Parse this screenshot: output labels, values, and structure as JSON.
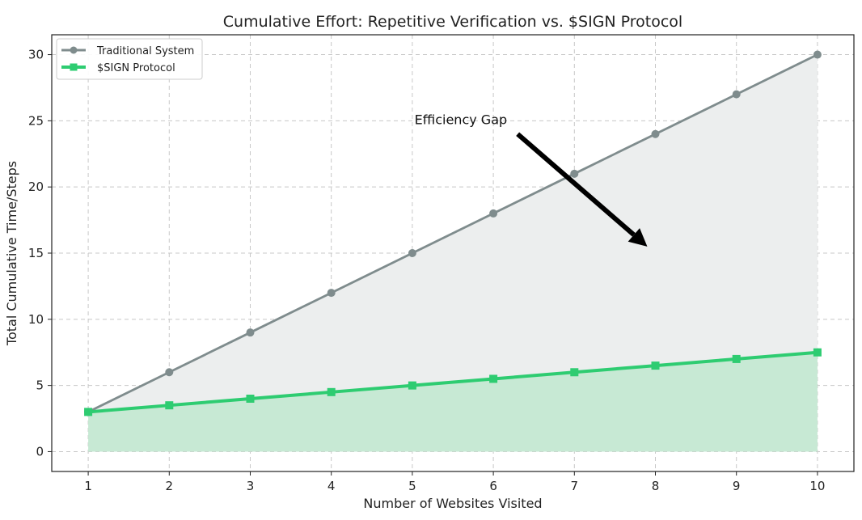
{
  "chart_data": {
    "type": "line",
    "title": "Cumulative Effort: Repetitive Verification vs. $SIGN Protocol",
    "xlabel": "Number of Websites Visited",
    "ylabel": "Total Cumulative Time/Steps",
    "x": [
      1,
      2,
      3,
      4,
      5,
      6,
      7,
      8,
      9,
      10
    ],
    "xlim": [
      0.55,
      10.45
    ],
    "ylim": [
      -1.5,
      31.5
    ],
    "xticks": [
      1,
      2,
      3,
      4,
      5,
      6,
      7,
      8,
      9,
      10
    ],
    "yticks": [
      0,
      5,
      10,
      15,
      20,
      25,
      30
    ],
    "grid": true,
    "legend_position": "top-left",
    "series": [
      {
        "name": "Traditional System",
        "values": [
          3,
          6,
          9,
          12,
          15,
          18,
          21,
          24,
          27,
          30
        ],
        "color": "#7f8c8d",
        "fill_color": "#eceeee",
        "marker": "circle"
      },
      {
        "name": "$SIGN Protocol",
        "values": [
          3,
          3.5,
          4,
          4.5,
          5,
          5.5,
          6,
          6.5,
          7,
          7.5
        ],
        "color": "#2ecc71",
        "fill_color": "#c7e9d4",
        "marker": "square"
      }
    ],
    "annotations": [
      {
        "text": "Efficiency Gap",
        "text_at": [
          5.0,
          25.0
        ],
        "arrow_from": [
          6.3,
          24.0
        ],
        "arrow_to": [
          7.9,
          15.5
        ],
        "color": "#000000"
      }
    ]
  }
}
